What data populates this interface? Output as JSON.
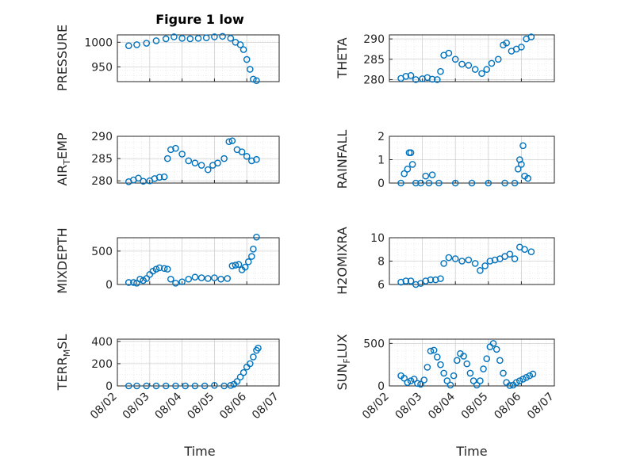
{
  "title": "Figure 1 low",
  "xlabel": "Time",
  "colors": {
    "marker": "#0072BD",
    "axis": "#262626",
    "grid": "#DFDFDF",
    "background": "#FFFFFF"
  },
  "x_ticks": [
    "08/02",
    "08/03",
    "08/04",
    "08/05",
    "08/06",
    "08/07"
  ],
  "ylabels": {
    "pressure": "PRESSURE",
    "theta": "THETA",
    "air_temp": "AIR",
    "air_temp_sub": "T",
    "air_temp_tail": "EMP",
    "rainfall": "RAINFALL",
    "mixdepth": "MIXDEPTH",
    "h2omixra": "H2OMIXRA",
    "terr_msl": "TERR",
    "terr_msl_sub": "M",
    "terr_msl_tail": "SL",
    "sun_flux": "SUN",
    "sun_flux_sub": "F",
    "sun_flux_tail": "LUX"
  },
  "chart_data": [
    {
      "type": "scatter",
      "id": "pressure",
      "ylabel": "PRESSURE",
      "xlim": [
        "08/02",
        "08/07"
      ],
      "ylim": [
        920,
        1015
      ],
      "yticks": [
        950,
        1000
      ],
      "grid": true,
      "x": [
        2.35,
        2.6,
        2.9,
        3.2,
        3.5,
        3.75,
        4.0,
        4.25,
        4.5,
        4.75,
        5.0,
        5.25,
        5.5,
        5.65,
        5.8,
        5.9,
        6.0,
        6.1,
        6.2,
        6.3
      ],
      "y": [
        993,
        995,
        998,
        1003,
        1007,
        1011,
        1008,
        1007,
        1008,
        1009,
        1011,
        1012,
        1008,
        1000,
        995,
        985,
        965,
        945,
        925,
        922
      ]
    },
    {
      "type": "scatter",
      "id": "theta",
      "ylabel": "THETA",
      "xlim": [
        "08/02",
        "08/07"
      ],
      "ylim": [
        279.5,
        291
      ],
      "yticks": [
        280,
        285,
        290
      ],
      "grid": true,
      "x": [
        2.35,
        2.5,
        2.65,
        2.8,
        3.0,
        3.15,
        3.3,
        3.45,
        3.55,
        3.65,
        3.8,
        4.0,
        4.2,
        4.4,
        4.6,
        4.8,
        4.95,
        5.1,
        5.3,
        5.45,
        5.55,
        5.7,
        5.85,
        6.0,
        6.15,
        6.3
      ],
      "y": [
        280.3,
        280.8,
        281.0,
        280.0,
        280.2,
        280.5,
        280.1,
        280.0,
        282,
        286,
        286.5,
        285,
        283.8,
        283.5,
        282.5,
        281.5,
        282.5,
        284,
        285,
        288.5,
        289,
        287,
        287.5,
        288,
        290,
        290.5
      ]
    },
    {
      "type": "scatter",
      "id": "air_temp",
      "ylabel": "AIRTEMP",
      "xlim": [
        "08/02",
        "08/07"
      ],
      "ylim": [
        279.5,
        290
      ],
      "yticks": [
        280,
        285,
        290
      ],
      "grid": true,
      "x": [
        2.35,
        2.5,
        2.65,
        2.8,
        3.0,
        3.15,
        3.3,
        3.45,
        3.55,
        3.65,
        3.8,
        4.0,
        4.2,
        4.4,
        4.6,
        4.8,
        4.95,
        5.1,
        5.3,
        5.45,
        5.55,
        5.7,
        5.85,
        6.0,
        6.15,
        6.3
      ],
      "y": [
        279.8,
        280.2,
        280.6,
        279.9,
        280.0,
        280.5,
        280.8,
        280.9,
        285,
        287,
        287.3,
        286,
        284.5,
        284,
        283.5,
        282.5,
        283.5,
        284,
        285,
        288.8,
        289,
        287,
        286.5,
        285.5,
        284.5,
        284.8
      ]
    },
    {
      "type": "scatter",
      "id": "rainfall",
      "ylabel": "RAINFALL",
      "xlim": [
        "08/02",
        "08/07"
      ],
      "ylim": [
        0,
        2
      ],
      "yticks": [
        0,
        1,
        2
      ],
      "grid": true,
      "x": [
        2.35,
        2.45,
        2.55,
        2.6,
        2.65,
        2.7,
        2.8,
        2.95,
        3.1,
        3.2,
        3.3,
        3.5,
        4.0,
        4.5,
        5.0,
        5.5,
        5.8,
        5.9,
        5.95,
        6.0,
        6.05,
        6.1,
        6.2
      ],
      "y": [
        0,
        0.4,
        0.6,
        1.3,
        1.3,
        0.8,
        0,
        0,
        0.3,
        0,
        0.35,
        0,
        0,
        0,
        0,
        0,
        0,
        0.6,
        1.0,
        0.8,
        1.6,
        0.3,
        0.2
      ]
    },
    {
      "type": "scatter",
      "id": "mixdepth",
      "ylabel": "MIXDEPTH",
      "xlim": [
        "08/02",
        "08/07"
      ],
      "ylim": [
        0,
        700
      ],
      "yticks": [
        0,
        500
      ],
      "grid": true,
      "x": [
        2.35,
        2.5,
        2.6,
        2.7,
        2.8,
        2.9,
        3.0,
        3.1,
        3.2,
        3.3,
        3.45,
        3.55,
        3.65,
        3.8,
        4.0,
        4.2,
        4.4,
        4.6,
        4.8,
        5.0,
        5.2,
        5.4,
        5.55,
        5.65,
        5.75,
        5.85,
        5.95,
        6.05,
        6.15,
        6.2,
        6.3
      ],
      "y": [
        30,
        30,
        20,
        80,
        60,
        90,
        150,
        200,
        230,
        250,
        240,
        230,
        80,
        20,
        40,
        80,
        110,
        100,
        90,
        100,
        80,
        90,
        280,
        290,
        300,
        220,
        260,
        340,
        420,
        530,
        710
      ]
    },
    {
      "type": "scatter",
      "id": "h2omixra",
      "ylabel": "H2OMIXRA",
      "xlim": [
        "08/02",
        "08/07"
      ],
      "ylim": [
        6,
        10
      ],
      "yticks": [
        6,
        8,
        10
      ],
      "grid": true,
      "x": [
        2.35,
        2.5,
        2.65,
        2.8,
        2.95,
        3.1,
        3.25,
        3.4,
        3.55,
        3.65,
        3.8,
        4.0,
        4.2,
        4.4,
        4.6,
        4.75,
        4.9,
        5.05,
        5.2,
        5.35,
        5.5,
        5.65,
        5.8,
        5.95,
        6.1,
        6.3
      ],
      "y": [
        6.2,
        6.3,
        6.3,
        6.0,
        6.1,
        6.3,
        6.4,
        6.4,
        6.5,
        7.8,
        8.3,
        8.2,
        8.0,
        8.1,
        7.8,
        7.2,
        7.6,
        8.0,
        8.1,
        8.2,
        8.4,
        8.6,
        8.2,
        9.2,
        9.0,
        8.8
      ]
    },
    {
      "type": "scatter",
      "id": "terr_msl",
      "ylabel": "TERRMSL",
      "xlim": [
        "08/02",
        "08/07"
      ],
      "ylim": [
        0,
        420
      ],
      "yticks": [
        0,
        200,
        400
      ],
      "grid": true,
      "x": [
        2.35,
        2.6,
        2.9,
        3.2,
        3.5,
        3.8,
        4.1,
        4.4,
        4.7,
        5.0,
        5.3,
        5.5,
        5.6,
        5.7,
        5.8,
        5.9,
        6.0,
        6.1,
        6.2,
        6.3,
        6.35
      ],
      "y": [
        0,
        0,
        0,
        0,
        0,
        0,
        0,
        0,
        0,
        5,
        0,
        5,
        15,
        40,
        80,
        120,
        170,
        200,
        260,
        320,
        340
      ]
    },
    {
      "type": "scatter",
      "id": "sun_flux",
      "ylabel": "SUNFLUX",
      "xlim": [
        "08/02",
        "08/07"
      ],
      "ylim": [
        0,
        550
      ],
      "yticks": [
        0,
        500
      ],
      "grid": true,
      "x": [
        2.35,
        2.45,
        2.55,
        2.65,
        2.75,
        2.85,
        2.95,
        3.05,
        3.15,
        3.25,
        3.35,
        3.45,
        3.55,
        3.65,
        3.75,
        3.85,
        3.95,
        4.05,
        4.15,
        4.25,
        4.35,
        4.45,
        4.55,
        4.65,
        4.75,
        4.85,
        4.95,
        5.05,
        5.15,
        5.25,
        5.35,
        5.45,
        5.55,
        5.65,
        5.75,
        5.85,
        5.95,
        6.05,
        6.15,
        6.25,
        6.35
      ],
      "y": [
        120,
        90,
        40,
        60,
        80,
        30,
        20,
        70,
        220,
        410,
        420,
        340,
        250,
        150,
        60,
        10,
        120,
        300,
        380,
        350,
        260,
        150,
        60,
        10,
        60,
        200,
        320,
        460,
        500,
        430,
        300,
        150,
        40,
        5,
        10,
        40,
        60,
        80,
        100,
        120,
        140
      ]
    }
  ]
}
